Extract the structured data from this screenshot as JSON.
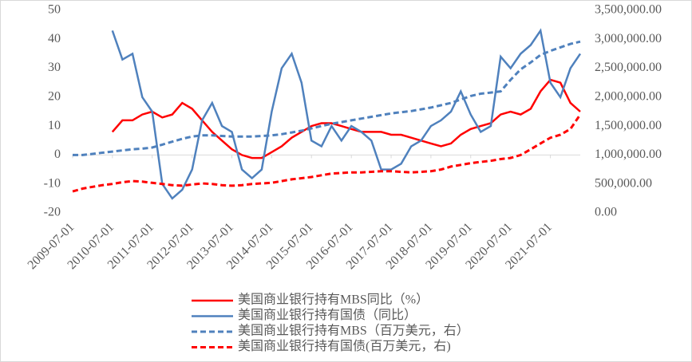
{
  "chart_data": {
    "type": "line",
    "x": [
      "2009-07-01",
      "2009-10-01",
      "2010-01-01",
      "2010-04-01",
      "2010-07-01",
      "2010-10-01",
      "2011-01-01",
      "2011-04-01",
      "2011-07-01",
      "2011-10-01",
      "2012-01-01",
      "2012-04-01",
      "2012-07-01",
      "2012-10-01",
      "2013-01-01",
      "2013-04-01",
      "2013-07-01",
      "2013-10-01",
      "2014-01-01",
      "2014-04-01",
      "2014-07-01",
      "2014-10-01",
      "2015-01-01",
      "2015-04-01",
      "2015-07-01",
      "2015-10-01",
      "2016-01-01",
      "2016-04-01",
      "2016-07-01",
      "2016-10-01",
      "2017-01-01",
      "2017-04-01",
      "2017-07-01",
      "2017-10-01",
      "2018-01-01",
      "2018-04-01",
      "2018-07-01",
      "2018-10-01",
      "2019-01-01",
      "2019-04-01",
      "2019-07-01",
      "2019-10-01",
      "2020-01-01",
      "2020-04-01",
      "2020-07-01",
      "2020-10-01",
      "2021-01-01",
      "2021-04-01",
      "2021-07-01",
      "2021-10-01",
      "2022-01-01",
      "2022-04-01"
    ],
    "xlim": [
      "2009-07-01",
      "2022-04-01"
    ],
    "xticks": [
      "2009-07-01",
      "2010-07-01",
      "2011-07-01",
      "2012-07-01",
      "2013-07-01",
      "2014-07-01",
      "2015-07-01",
      "2016-07-01",
      "2017-07-01",
      "2018-07-01",
      "2019-07-01",
      "2020-07-01",
      "2021-07-01"
    ],
    "ylim": [
      -20,
      50
    ],
    "yticks": [
      -20,
      -10,
      0,
      10,
      20,
      30,
      40,
      50
    ],
    "y2lim": [
      0,
      3500000
    ],
    "y2ticks": [
      {
        "value": 0,
        "label": "0.00"
      },
      {
        "value": 500000,
        "label": "500,000.00"
      },
      {
        "value": 1000000,
        "label": "1,000,000.00"
      },
      {
        "value": 1500000,
        "label": "1,500,000.00"
      },
      {
        "value": 2000000,
        "label": "2,000,000.00"
      },
      {
        "value": 2500000,
        "label": "2,500,000.00"
      },
      {
        "value": 3000000,
        "label": "3,000,000.00"
      },
      {
        "value": 3500000,
        "label": "3,500,000.00"
      }
    ],
    "series": [
      {
        "name": "美国商业银行持有MBS同比（%）",
        "color": "#ff0000",
        "dash": false,
        "values": [
          null,
          null,
          null,
          null,
          8,
          12,
          12,
          14,
          15,
          13,
          14,
          18,
          16,
          12,
          8,
          5,
          2,
          0,
          -1,
          -1,
          1,
          3,
          6,
          8,
          10,
          11,
          11,
          10,
          9,
          8,
          8,
          8,
          7,
          7,
          6,
          5,
          4,
          3,
          4,
          7,
          9,
          10,
          11,
          14,
          15,
          14,
          16,
          22,
          26,
          25,
          18,
          15
        ]
      },
      {
        "name": "美国商业银行持有国债（同比）",
        "color": "#4f81bd",
        "dash": false,
        "values": [
          null,
          null,
          null,
          null,
          43,
          33,
          35,
          20,
          15,
          -10,
          -15,
          -12,
          -5,
          12,
          18,
          10,
          8,
          -5,
          -8,
          -5,
          15,
          30,
          35,
          25,
          5,
          3,
          10,
          5,
          10,
          8,
          5,
          -5,
          -5,
          -3,
          3,
          5,
          10,
          12,
          15,
          22,
          14,
          8,
          10,
          34,
          30,
          35,
          38,
          43,
          25,
          20,
          30,
          35
        ]
      },
      {
        "name": "美国商业银行持有MBS（百万美元，右）",
        "color": "#4f81bd",
        "dash": true,
        "axis": "y2",
        "values": [
          1000000,
          1000000,
          1020000,
          1040000,
          1060000,
          1080000,
          1100000,
          1110000,
          1130000,
          1180000,
          1230000,
          1280000,
          1320000,
          1340000,
          1340000,
          1330000,
          1320000,
          1320000,
          1320000,
          1330000,
          1340000,
          1360000,
          1390000,
          1420000,
          1460000,
          1500000,
          1540000,
          1570000,
          1600000,
          1630000,
          1660000,
          1690000,
          1720000,
          1740000,
          1760000,
          1790000,
          1820000,
          1860000,
          1900000,
          1960000,
          2020000,
          2060000,
          2080000,
          2100000,
          2300000,
          2480000,
          2600000,
          2730000,
          2800000,
          2860000,
          2920000,
          2960000
        ]
      },
      {
        "name": "美国商业银行持有国债(百万美元，右)",
        "color": "#ff0000",
        "dash": true,
        "axis": "y2",
        "values": [
          370000,
          420000,
          450000,
          480000,
          500000,
          530000,
          550000,
          540000,
          520000,
          500000,
          480000,
          470000,
          490000,
          510000,
          500000,
          480000,
          470000,
          480000,
          500000,
          510000,
          520000,
          550000,
          580000,
          600000,
          620000,
          650000,
          680000,
          690000,
          700000,
          700000,
          710000,
          720000,
          720000,
          710000,
          700000,
          710000,
          720000,
          750000,
          800000,
          830000,
          860000,
          880000,
          900000,
          930000,
          950000,
          1000000,
          1100000,
          1200000,
          1300000,
          1350000,
          1450000,
          1700000
        ]
      }
    ]
  }
}
